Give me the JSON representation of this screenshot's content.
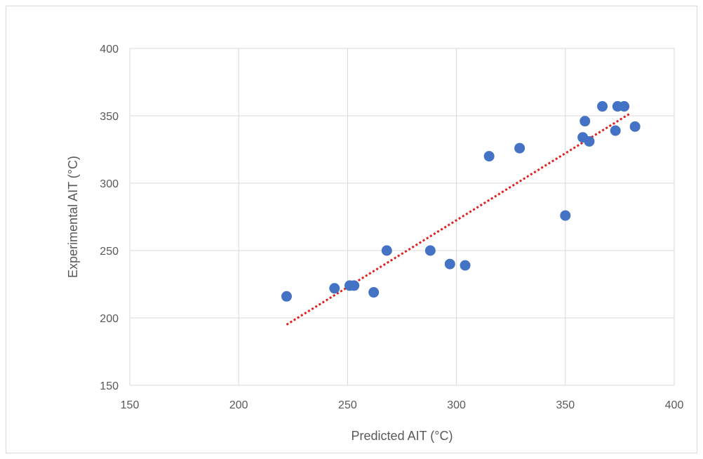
{
  "chart_data": {
    "type": "scatter",
    "title": "",
    "xlabel": "Predicted AIT (°C)",
    "ylabel": "Experimental AIT (°C)",
    "xlim": [
      150,
      400
    ],
    "ylim": [
      150,
      400
    ],
    "xticks": [
      150,
      200,
      250,
      300,
      350,
      400
    ],
    "yticks": [
      150,
      200,
      250,
      300,
      350,
      400
    ],
    "grid": true,
    "legend": "none",
    "point_color": "#4472C4",
    "trendline_color": "#E02020",
    "points": [
      {
        "x": 222,
        "y": 216
      },
      {
        "x": 244,
        "y": 222
      },
      {
        "x": 251,
        "y": 224
      },
      {
        "x": 253,
        "y": 224
      },
      {
        "x": 262,
        "y": 219
      },
      {
        "x": 268,
        "y": 250
      },
      {
        "x": 288,
        "y": 250
      },
      {
        "x": 297,
        "y": 240
      },
      {
        "x": 304,
        "y": 239
      },
      {
        "x": 315,
        "y": 320
      },
      {
        "x": 329,
        "y": 326
      },
      {
        "x": 350,
        "y": 276
      },
      {
        "x": 358,
        "y": 334
      },
      {
        "x": 359,
        "y": 346
      },
      {
        "x": 361,
        "y": 331
      },
      {
        "x": 367,
        "y": 357
      },
      {
        "x": 373,
        "y": 339
      },
      {
        "x": 374,
        "y": 357
      },
      {
        "x": 377,
        "y": 357
      },
      {
        "x": 382,
        "y": 342
      }
    ],
    "trendline": {
      "x": [
        222,
        380
      ],
      "y": [
        195,
        352
      ]
    }
  }
}
